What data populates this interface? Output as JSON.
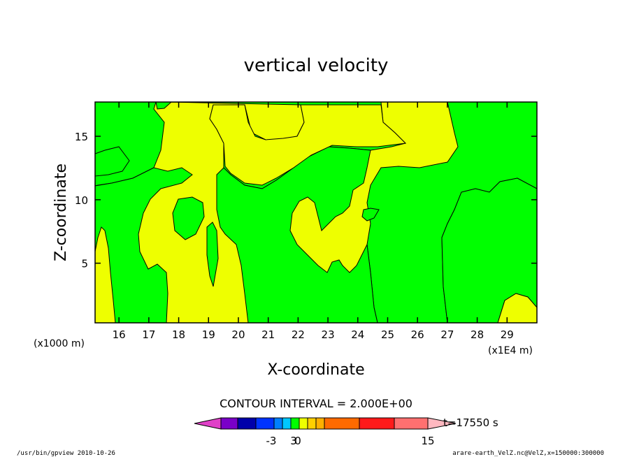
{
  "chart_data": {
    "type": "heatmap",
    "title": "vertical velocity",
    "xlabel": "X-coordinate",
    "ylabel": "Z-coordinate",
    "x_unit_label": "(x1E4 m)",
    "y_unit_label": "(x1000 m)",
    "xlim": [
      15.2,
      30
    ],
    "ylim": [
      0.3,
      17.7
    ],
    "x_ticks": [
      16,
      17,
      18,
      19,
      20,
      21,
      22,
      23,
      24,
      25,
      26,
      27,
      28,
      29
    ],
    "y_ticks": [
      5,
      10,
      15
    ],
    "contour_interval_label": "CONTOUR INTERVAL = 2.000E+00",
    "time_label": "t=17550 s",
    "legend": {
      "tick_labels": [
        "-3",
        "0",
        "3",
        "15"
      ],
      "colors": [
        "#7a00c8",
        "#0000aa",
        "#0033ff",
        "#0080ff",
        "#00c8ff",
        "#00ff00",
        "#eeff00",
        "#ffd000",
        "#ffb000",
        "#ff6a00",
        "#ff1a1a",
        "#ff7070"
      ],
      "left_arrow_color": "#e040c8",
      "right_arrow_color": "#ffb8c0"
    },
    "regions": [
      {
        "level": "0 to 1",
        "color": "#eeff00"
      },
      {
        "level": "-1 to 0",
        "color": "#00ff00"
      }
    ]
  },
  "footer": {
    "left": "/usr/bin/gpview   2010-10-26",
    "right": "arare-earth_VelZ.nc@VelZ,x=150000:300000"
  }
}
